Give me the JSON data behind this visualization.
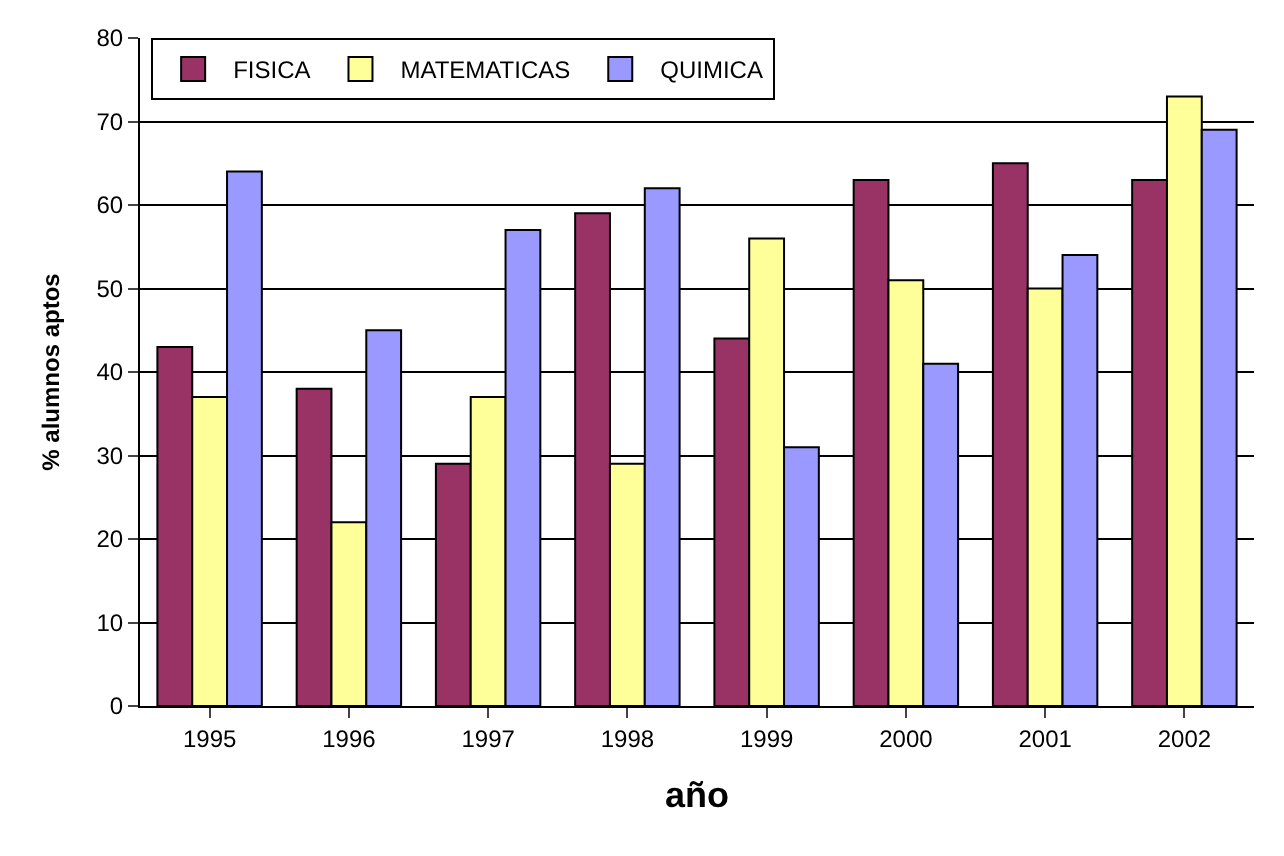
{
  "chart_data": {
    "type": "bar",
    "xlabel": "año",
    "ylabel": "% alumnos aptos",
    "categories": [
      "1995",
      "1996",
      "1997",
      "1998",
      "1999",
      "2000",
      "2001",
      "2002"
    ],
    "series": [
      {
        "name": "FISICA",
        "color": "#993366",
        "values": [
          43,
          38,
          29,
          59,
          44,
          63,
          65,
          63
        ]
      },
      {
        "name": "MATEMATICAS",
        "color": "#ffff99",
        "values": [
          37,
          22,
          37,
          29,
          56,
          51,
          50,
          73
        ]
      },
      {
        "name": "QUIMICA",
        "color": "#9999ff",
        "values": [
          64,
          45,
          57,
          62,
          31,
          41,
          54,
          69
        ]
      }
    ],
    "ylim": [
      0,
      80
    ],
    "yticks": [
      0,
      10,
      20,
      30,
      40,
      50,
      60,
      70,
      80
    ],
    "grid": "y",
    "legend": "top left"
  }
}
